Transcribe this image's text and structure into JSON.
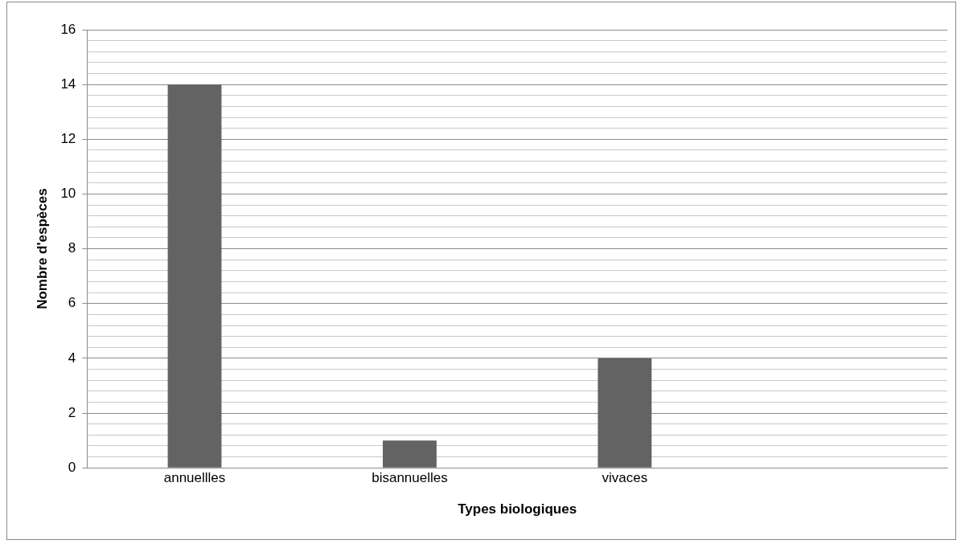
{
  "chart_data": {
    "type": "bar",
    "xlabel": "Types biologiques",
    "ylabel": "Nombre d'espèces",
    "categories": [
      "annuellles",
      "bisannuelles",
      "vivaces",
      null
    ],
    "values": [
      14,
      1,
      4,
      null
    ],
    "color": "#636363",
    "ylim": [
      0,
      16
    ],
    "yticks": [
      0,
      {
        "value": 0.4,
        "label": null
      },
      {
        "value": 0.8,
        "label": null
      },
      {
        "value": 1.2,
        "label": null
      },
      {
        "value": 1.6,
        "label": null
      },
      2,
      {
        "value": 2.4,
        "label": null
      },
      {
        "value": 2.8,
        "label": null
      },
      {
        "value": 3.2,
        "label": null
      },
      {
        "value": 3.6,
        "label": null
      },
      4,
      {
        "value": 4.4,
        "label": null
      },
      {
        "value": 4.8,
        "label": null
      },
      {
        "value": 5.2,
        "label": null
      },
      {
        "value": 5.6,
        "label": null
      },
      6,
      {
        "value": 6.4,
        "label": null
      },
      {
        "value": 6.8,
        "label": null
      },
      {
        "value": 7.2,
        "label": null
      },
      {
        "value": 7.6,
        "label": null
      },
      8,
      {
        "value": 8.4,
        "label": null
      },
      {
        "value": 8.8,
        "label": null
      },
      {
        "value": 9.2,
        "label": null
      },
      {
        "value": 9.6,
        "label": null
      },
      10,
      {
        "value": 10.4,
        "label": null
      },
      {
        "value": 10.8,
        "label": null
      },
      {
        "value": 11.2,
        "label": null
      },
      {
        "value": 11.6,
        "label": null
      },
      12,
      {
        "value": 12.4,
        "label": null
      },
      {
        "value": 12.8,
        "label": null
      },
      {
        "value": 13.2,
        "label": null
      },
      {
        "value": 13.6,
        "label": null
      },
      14,
      {
        "value": 14.4,
        "label": null
      },
      {
        "value": 14.8,
        "label": null
      },
      {
        "value": 15.2,
        "label": null
      },
      {
        "value": 15.6,
        "label": null
      },
      16
    ],
    "grid": "y"
  }
}
